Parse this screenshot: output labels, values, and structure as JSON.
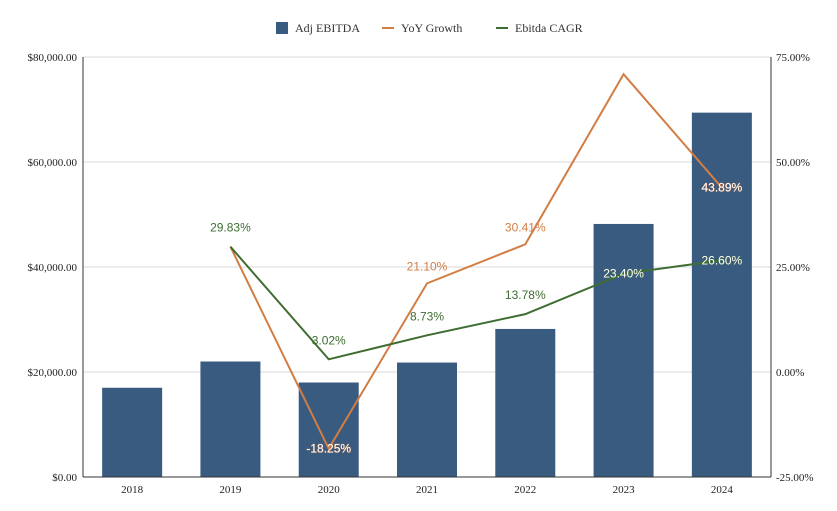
{
  "chart_data": {
    "type": "bar",
    "categories": [
      "2018",
      "2019",
      "2020",
      "2021",
      "2022",
      "2023",
      "2024"
    ],
    "series": [
      {
        "name": "Adj EBITDA",
        "type": "bar",
        "axis": "left",
        "color": "#3a5b80",
        "values": [
          17000,
          22000,
          18000,
          21800,
          28200,
          48200,
          69400
        ]
      },
      {
        "name": "YoY Growth",
        "type": "line",
        "axis": "right",
        "color": "#d27d44",
        "values": [
          null,
          29.83,
          -18.25,
          21.1,
          30.41,
          70.9,
          43.89
        ],
        "labels": [
          "",
          "",
          "-18.25%",
          "21.10%",
          "30.41%",
          "",
          "43.89%"
        ]
      },
      {
        "name": "Ebitda CAGR",
        "type": "line",
        "axis": "right",
        "color": "#3f6d31",
        "values": [
          null,
          29.83,
          3.02,
          8.73,
          13.78,
          23.4,
          26.6
        ],
        "labels": [
          "",
          "29.83%",
          "3.02%",
          "8.73%",
          "13.78%",
          "23.40%",
          "26.60%"
        ]
      }
    ],
    "y_left": {
      "min": 0,
      "max": 80000,
      "ticks": [
        "$0.00",
        "$20,000.00",
        "$40,000.00",
        "$60,000.00",
        "$80,000.00"
      ]
    },
    "y_right": {
      "min": -25,
      "max": 75,
      "ticks": [
        "-25.00%",
        "0.00%",
        "25.00%",
        "50.00%",
        "75.00%"
      ]
    },
    "grid": true,
    "legend_position": "top"
  }
}
